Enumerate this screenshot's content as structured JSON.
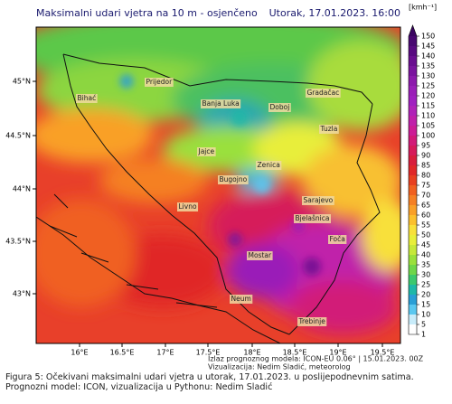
{
  "header": {
    "title": "Maksimalni udari vjetra na 10 m - osjenčeno",
    "date": "Utorak, 17.01.2023. 16:00"
  },
  "map": {
    "lat_labels": [
      "45°N",
      "44.5°N",
      "44°N",
      "43.5°N",
      "43°N"
    ],
    "lon_labels": [
      "16°E",
      "16.5°E",
      "17°E",
      "17.5°E",
      "18°E",
      "18.5°E",
      "19°E",
      "19.5°E"
    ],
    "cities": [
      "Prijedor",
      "Bihać",
      "Banja Luka",
      "Doboj",
      "Gradačac",
      "Tuzla",
      "Jajce",
      "Zenica",
      "Bugojno",
      "Livno",
      "Sarajevo",
      "Bjelašnica",
      "Foča",
      "Mostar",
      "Neum",
      "Trebinje"
    ]
  },
  "colorbar": {
    "unit": "[kmh⁻¹]",
    "ticks": [
      1,
      5,
      10,
      15,
      20,
      25,
      30,
      35,
      40,
      45,
      50,
      55,
      60,
      65,
      70,
      75,
      80,
      85,
      90,
      95,
      100,
      105,
      110,
      115,
      120,
      125,
      130,
      135,
      140,
      145,
      150
    ],
    "colors": [
      "#ffffff",
      "#c8ecfa",
      "#5ac8f0",
      "#2a9fd6",
      "#1fb8a8",
      "#3cc86e",
      "#6ed64a",
      "#9ae03c",
      "#c6e83a",
      "#e8ee3a",
      "#f8e03a",
      "#fbc02d",
      "#f9a028",
      "#f58024",
      "#f06020",
      "#e84020",
      "#e02828",
      "#d81e3c",
      "#d61a5a",
      "#d21a78",
      "#cc1c96",
      "#c020aa",
      "#b022b8",
      "#a020c0",
      "#9a1fb8",
      "#8c1aac",
      "#7a149e",
      "#6a0e90",
      "#580a80",
      "#480870",
      "#3a0560"
    ]
  },
  "credits": [
    "Izlaz prognoznog modela: ICON-EU 0.06° | 15.01.2023. 00Z",
    "Vizualizacija: Nedim Sladić, meteorolog"
  ],
  "caption": "Figura 5: Očekivani maksimalni udari vjetra u utorak, 17.01.2023. u poslijepodnevnim satima. Prognozni model: ICON, vizualizacija u Pythonu: Nedim Sladić"
}
